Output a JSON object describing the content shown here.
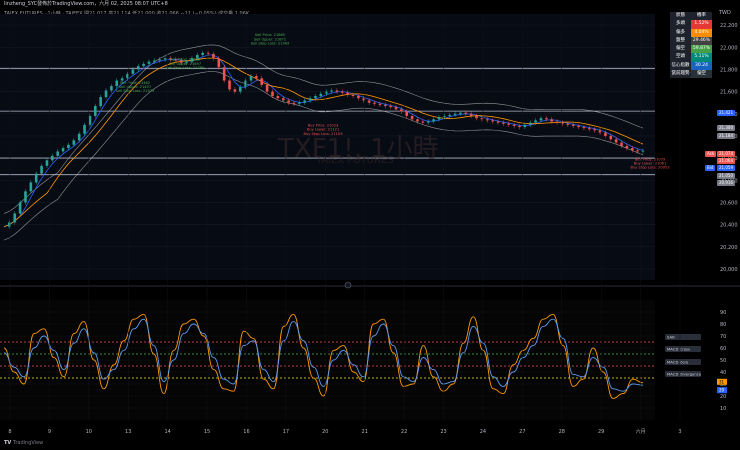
{
  "header": {
    "user_line": "linzheng_SYC發佈於TradingView.com，六月 02, 2025 08:07 UTC+8",
    "symbol_line": "TAIEX FUTURES · 1小時 · TAIFEX  開21,017  高21,114  低21,000  收21,066  −11 (−0.05%)  成交量 1.06K"
  },
  "watermark": {
    "symbol": "TXF1!, 1小時",
    "name": "TAIEX FUTURES"
  },
  "footer": {
    "brand": "TradingView"
  },
  "colors": {
    "up": "#26a69a",
    "down": "#ef5350",
    "bb": "#cfcfcf",
    "fast": "#2962ff",
    "slow": "#ff9800",
    "macd_orange": "#ff9800",
    "macd_blue": "#5b9cf6"
  },
  "right_axis": {
    "unit_label": "TWD",
    "ticks": [
      "22,200",
      "22,000",
      "21,800",
      "21,600",
      "21,400",
      "21,200",
      "21,000",
      "20,800",
      "20,600",
      "20,400",
      "20,200",
      "20,000"
    ],
    "price_tags": [
      {
        "label": "Ask",
        "value": "21,074",
        "color": "#ef5350"
      },
      {
        "label": "",
        "value": "21,064",
        "color": "#ef5350"
      },
      {
        "label": "Bid",
        "value": "21,059",
        "color": "#2962ff"
      },
      {
        "label": "",
        "value": "21,421",
        "color": "#2962ff"
      },
      {
        "label": "",
        "value": "21,300",
        "color": "#787b86"
      },
      {
        "label": "",
        "value": "21,184",
        "color": "#787b86"
      },
      {
        "label": "",
        "value": "21,050",
        "color": "#787b86"
      },
      {
        "label": "",
        "value": "20,916",
        "color": "#787b86"
      }
    ]
  },
  "osc_axis": {
    "ticks": [
      "90",
      "80",
      "70",
      "60",
      "50",
      "40",
      "30",
      "20",
      "10"
    ],
    "value_orange": "31",
    "value_blue": "29"
  },
  "osc_labels": [
    "SAR",
    "MACD Cross",
    "MACD Zero",
    "MACD Divergence"
  ],
  "x_axis": {
    "ticks": [
      "8",
      "9",
      "10",
      "13",
      "14",
      "15",
      "16",
      "17",
      "20",
      "21",
      "22",
      "23",
      "24",
      "27",
      "28",
      "29",
      "六月",
      "3"
    ]
  },
  "info_table": {
    "header": [
      "狀態",
      "機率"
    ],
    "rows": [
      {
        "name": "多頭",
        "value": "1.52%",
        "color": "#e53935"
      },
      {
        "name": "偏多",
        "value": "4.04%",
        "color": "#fb8c00"
      },
      {
        "name": "盤整",
        "value": "29.46%",
        "color": "#424242"
      },
      {
        "name": "偏空",
        "value": "59.87%",
        "color": "#43a047"
      },
      {
        "name": "空頭",
        "value": "5.11%",
        "color": "#00897b"
      },
      {
        "name": "信心指數",
        "value": "30.24",
        "color": "#1565c0"
      },
      {
        "name": "當前趨勢",
        "value": "偏空",
        "color": "#263238"
      }
    ]
  },
  "annotations": [
    {
      "lines": [
        "Sell Price: 21865",
        "Sell Upper: 21872",
        "Sell Stop Loss: 21969"
      ],
      "color": "#4caf50",
      "x_date": "May 16",
      "y": 22100
    },
    {
      "lines": [
        "Sell Price: 21685",
        "Sell Upper: 21697",
        "Sell Stop Loss: 21780"
      ],
      "color": "#4caf50",
      "x_date": "May 14",
      "y": 21880
    },
    {
      "lines": [
        "Sell Price: 21462",
        "Sell Upper: 21457",
        "Sell Stop Loss: 21575"
      ],
      "color": "#4caf50",
      "x_date": "May 12",
      "y": 21670
    },
    {
      "lines": [
        "Buy Price: 21023",
        "Buy Lower: 21121",
        "Buy Stop Loss: 21109"
      ],
      "color": "#ef5350",
      "x_date": "May 19",
      "y": 21285
    },
    {
      "lines": [
        "Buy Price: 21079",
        "Buy Lower: 21061",
        "Buy Stop Loss: 20953"
      ],
      "color": "#ef5350",
      "x_date": "May 30",
      "y": 20980
    }
  ],
  "chart_data": {
    "type": "line",
    "price": {
      "y_range": [
        19900,
        22300
      ],
      "x_count": 120,
      "close_path": [
        20380,
        20420,
        20500,
        20600,
        20700,
        20780,
        20860,
        20930,
        20980,
        21020,
        21060,
        21090,
        21120,
        21160,
        21220,
        21300,
        21380,
        21470,
        21550,
        21610,
        21650,
        21700,
        21720,
        21760,
        21800,
        21830,
        21850,
        21870,
        21880,
        21890,
        21900,
        21890,
        21880,
        21860,
        21870,
        21900,
        21930,
        21950,
        21940,
        21900,
        21820,
        21700,
        21620,
        21600,
        21640,
        21700,
        21740,
        21720,
        21660,
        21600,
        21560,
        21540,
        21520,
        21500,
        21490,
        21500,
        21520,
        21540,
        21560,
        21580,
        21600,
        21610,
        21600,
        21590,
        21570,
        21560,
        21540,
        21520,
        21500,
        21490,
        21480,
        21470,
        21460,
        21440,
        21420,
        21380,
        21350,
        21330,
        21320,
        21330,
        21350,
        21370,
        21380,
        21390,
        21400,
        21410,
        21400,
        21380,
        21360,
        21350,
        21340,
        21330,
        21320,
        21310,
        21300,
        21290,
        21280,
        21300,
        21320,
        21340,
        21360,
        21350,
        21330,
        21320,
        21310,
        21300,
        21290,
        21280,
        21270,
        21260,
        21250,
        21230,
        21200,
        21170,
        21140,
        21110,
        21090,
        21070,
        21060,
        21066
      ],
      "horizontal_levels": [
        21810,
        21424,
        21000,
        20850
      ],
      "moving_averages": [
        {
          "name": "Fast",
          "color": "#2962ff",
          "lag": 3
        },
        {
          "name": "Slow",
          "color": "#ff9800",
          "lag": 8
        }
      ],
      "bands": {
        "color": "#cfcfcf",
        "width": 120
      }
    },
    "oscillator": {
      "y_range": [
        0,
        100
      ],
      "levels": [
        {
          "value": 65,
          "color": "#ef5350"
        },
        {
          "value": 55,
          "color": "#4caf50"
        },
        {
          "value": 45,
          "color": "#ef5350"
        },
        {
          "value": 35,
          "color": "#ffeb3b"
        }
      ],
      "series": [
        {
          "name": "K",
          "color": "#ff9800",
          "values": [
            60,
            40,
            30,
            72,
            76,
            52,
            36,
            72,
            82,
            50,
            26,
            46,
            66,
            84,
            88,
            55,
            22,
            58,
            80,
            84,
            70,
            42,
            26,
            24,
            74,
            68,
            34,
            26,
            78,
            88,
            60,
            35,
            20,
            58,
            62,
            40,
            32,
            80,
            84,
            56,
            28,
            30,
            62,
            36,
            24,
            30,
            64,
            86,
            58,
            26,
            22,
            46,
            58,
            68,
            84,
            88,
            62,
            28,
            34,
            60,
            40,
            18,
            22,
            34,
            31
          ]
        },
        {
          "name": "D",
          "color": "#5b9cf6",
          "values": [
            56,
            44,
            36,
            60,
            70,
            58,
            42,
            64,
            76,
            56,
            34,
            42,
            58,
            76,
            84,
            62,
            32,
            50,
            72,
            80,
            72,
            52,
            34,
            30,
            62,
            66,
            42,
            32,
            66,
            82,
            66,
            44,
            28,
            50,
            58,
            46,
            36,
            70,
            80,
            62,
            36,
            32,
            52,
            42,
            30,
            32,
            56,
            78,
            64,
            36,
            28,
            40,
            52,
            62,
            78,
            84,
            68,
            38,
            36,
            52,
            44,
            26,
            24,
            30,
            29
          ]
        }
      ]
    }
  }
}
